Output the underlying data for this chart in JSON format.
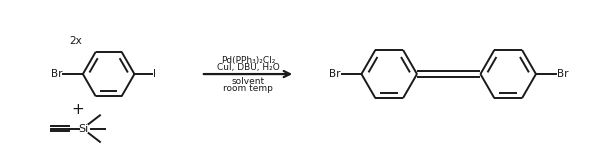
{
  "background_color": "#ffffff",
  "line_color": "#1a1a1a",
  "line_width": 1.4,
  "font_size": 7.5,
  "reagents_text": [
    "Pd(PPh₃)₂Cl₂",
    "CuI, DBU, H₂O",
    "solvent",
    "room temp"
  ],
  "figsize": [
    6.0,
    1.62
  ],
  "dpi": 100
}
